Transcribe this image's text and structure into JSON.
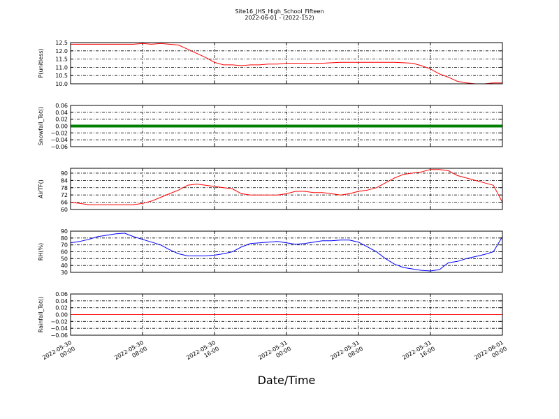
{
  "chart_data": {
    "type": "line",
    "title": "Site16_JHS_High_School_Fifteen",
    "subtitle": "2022-06-01 - (2022-152)",
    "xlabel": "Date/Time",
    "x_range_hours": [
      0,
      48
    ],
    "x_ticks": [
      {
        "hour": 0,
        "label": [
          "2022-05-30",
          "00:00"
        ]
      },
      {
        "hour": 8,
        "label": [
          "2022-05-30",
          "08:00"
        ]
      },
      {
        "hour": 16,
        "label": [
          "2022-05-30",
          "16:00"
        ]
      },
      {
        "hour": 24,
        "label": [
          "2022-05-31",
          "00:00"
        ]
      },
      {
        "hour": 32,
        "label": [
          "2022-05-31",
          "08:00"
        ]
      },
      {
        "hour": 40,
        "label": [
          "2022-05-31",
          "16:00"
        ]
      },
      {
        "hour": 48,
        "label": [
          "2022-06-01",
          "00:00"
        ]
      }
    ],
    "grid": true,
    "panels": [
      {
        "ylabel": "P(unitless)",
        "ylim": [
          10.0,
          12.5
        ],
        "yticks": [
          "12.5",
          "12.0",
          "11.5",
          "11.0",
          "10.5",
          "10.0"
        ],
        "ytick_values": [
          12.5,
          12.0,
          11.5,
          11.0,
          10.5,
          10.0
        ],
        "color": "#ff0000",
        "series": [
          [
            0,
            12.4
          ],
          [
            4,
            12.4
          ],
          [
            7,
            12.4
          ],
          [
            8,
            12.45
          ],
          [
            9,
            12.4
          ],
          [
            10,
            12.45
          ],
          [
            11,
            12.4
          ],
          [
            12,
            12.35
          ],
          [
            13,
            12.1
          ],
          [
            14,
            11.85
          ],
          [
            15,
            11.6
          ],
          [
            16,
            11.3
          ],
          [
            17,
            11.15
          ],
          [
            18,
            11.15
          ],
          [
            19,
            11.1
          ],
          [
            20,
            11.15
          ],
          [
            21,
            11.15
          ],
          [
            22,
            11.2
          ],
          [
            23,
            11.2
          ],
          [
            24,
            11.25
          ],
          [
            28,
            11.25
          ],
          [
            30,
            11.3
          ],
          [
            34,
            11.3
          ],
          [
            36,
            11.3
          ],
          [
            38,
            11.25
          ],
          [
            39,
            11.1
          ],
          [
            40,
            10.9
          ],
          [
            41,
            10.6
          ],
          [
            42,
            10.4
          ],
          [
            43,
            10.15
          ],
          [
            44,
            10.05
          ],
          [
            45,
            10.0
          ],
          [
            46,
            10.0
          ],
          [
            47,
            10.05
          ],
          [
            48,
            10.05
          ]
        ]
      },
      {
        "ylabel": "Snowfall_Tot()",
        "ylim": [
          -0.06,
          0.06
        ],
        "yticks": [
          "0.06",
          "0.04",
          "0.02",
          "0.00",
          "−0.02",
          "−0.04",
          "−0.06"
        ],
        "ytick_values": [
          0.06,
          0.04,
          0.02,
          0.0,
          -0.02,
          -0.04,
          -0.06
        ],
        "color": "#008000",
        "line_width": 4,
        "series": [
          [
            0,
            0
          ],
          [
            48,
            0
          ]
        ]
      },
      {
        "ylabel": "AirTF()",
        "ylim": [
          60,
          94
        ],
        "yticks": [
          "90",
          "84",
          "78",
          "72",
          "66",
          "60"
        ],
        "ytick_values": [
          90,
          84,
          78,
          72,
          66,
          60
        ],
        "color": "#ff0000",
        "series": [
          [
            0,
            66
          ],
          [
            1,
            65
          ],
          [
            2,
            64
          ],
          [
            3,
            64
          ],
          [
            4,
            64
          ],
          [
            5,
            64
          ],
          [
            6,
            64
          ],
          [
            7,
            64
          ],
          [
            8,
            65
          ],
          [
            9,
            67
          ],
          [
            10,
            70
          ],
          [
            11,
            73
          ],
          [
            12,
            76
          ],
          [
            13,
            80
          ],
          [
            14,
            81
          ],
          [
            15,
            80
          ],
          [
            16,
            79
          ],
          [
            17,
            78
          ],
          [
            18,
            77
          ],
          [
            19,
            73
          ],
          [
            20,
            72
          ],
          [
            21,
            72
          ],
          [
            22,
            72
          ],
          [
            23,
            72
          ],
          [
            24,
            73
          ],
          [
            25,
            75
          ],
          [
            26,
            75
          ],
          [
            27,
            74
          ],
          [
            28,
            74
          ],
          [
            29,
            73
          ],
          [
            30,
            72
          ],
          [
            31,
            73
          ],
          [
            32,
            75
          ],
          [
            33,
            76
          ],
          [
            34,
            78
          ],
          [
            35,
            82
          ],
          [
            36,
            86
          ],
          [
            37,
            89
          ],
          [
            38,
            90
          ],
          [
            39,
            91
          ],
          [
            40,
            93
          ],
          [
            41,
            93
          ],
          [
            42,
            92
          ],
          [
            43,
            88
          ],
          [
            44,
            86
          ],
          [
            45,
            84
          ],
          [
            46,
            82
          ],
          [
            47,
            80
          ],
          [
            48,
            66
          ]
        ]
      },
      {
        "ylabel": "RH(%)",
        "ylim": [
          30,
          90
        ],
        "yticks": [
          "90",
          "80",
          "70",
          "60",
          "50",
          "40",
          "30"
        ],
        "ytick_values": [
          90,
          80,
          70,
          60,
          50,
          40,
          30
        ],
        "color": "#0000ff",
        "series": [
          [
            0,
            73
          ],
          [
            1,
            75
          ],
          [
            2,
            78
          ],
          [
            3,
            82
          ],
          [
            4,
            84
          ],
          [
            5,
            86
          ],
          [
            6,
            87
          ],
          [
            7,
            82
          ],
          [
            8,
            78
          ],
          [
            9,
            74
          ],
          [
            10,
            70
          ],
          [
            11,
            63
          ],
          [
            12,
            57
          ],
          [
            13,
            54
          ],
          [
            14,
            54
          ],
          [
            15,
            54
          ],
          [
            16,
            55
          ],
          [
            17,
            57
          ],
          [
            18,
            60
          ],
          [
            19,
            67
          ],
          [
            20,
            72
          ],
          [
            21,
            73
          ],
          [
            22,
            74
          ],
          [
            23,
            75
          ],
          [
            24,
            73
          ],
          [
            25,
            71
          ],
          [
            26,
            72
          ],
          [
            27,
            74
          ],
          [
            28,
            76
          ],
          [
            29,
            76
          ],
          [
            30,
            77
          ],
          [
            31,
            77
          ],
          [
            32,
            74
          ],
          [
            33,
            67
          ],
          [
            34,
            60
          ],
          [
            35,
            50
          ],
          [
            36,
            42
          ],
          [
            37,
            37
          ],
          [
            38,
            35
          ],
          [
            39,
            33
          ],
          [
            40,
            32
          ],
          [
            41,
            34
          ],
          [
            42,
            44
          ],
          [
            43,
            46
          ],
          [
            44,
            50
          ],
          [
            45,
            53
          ],
          [
            46,
            56
          ],
          [
            47,
            60
          ],
          [
            48,
            82
          ]
        ]
      },
      {
        "ylabel": "Rainfall_Tot()",
        "ylim": [
          -0.06,
          0.06
        ],
        "yticks": [
          "0.06",
          "0.04",
          "0.02",
          "0.00",
          "−0.02",
          "−0.04",
          "−0.06"
        ],
        "ytick_values": [
          0.06,
          0.04,
          0.02,
          0.0,
          -0.02,
          -0.04,
          -0.06
        ],
        "color": "#ff0000",
        "series": [
          [
            0,
            0
          ],
          [
            48,
            0
          ]
        ]
      }
    ]
  }
}
